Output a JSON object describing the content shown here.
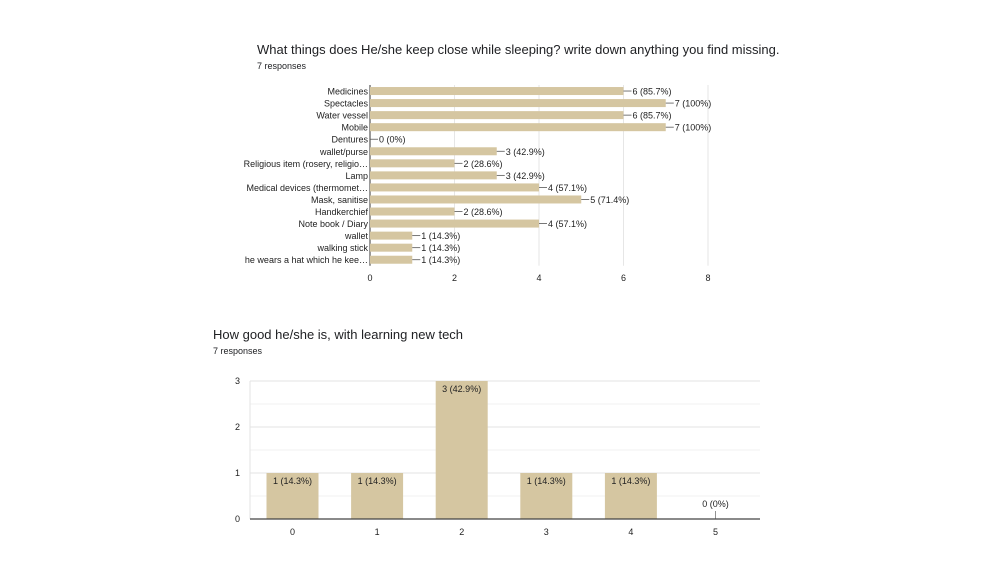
{
  "chart_data": [
    {
      "type": "bar",
      "orientation": "horizontal",
      "title": "What things does He/she keep close while sleeping? write down anything you find missing.",
      "subtitle": "7 responses",
      "categories": [
        "Medicines",
        "Spectacles",
        "Water vessel",
        "Mobile",
        "Dentures",
        "wallet/purse",
        "Religious item (rosery, religio…",
        "Lamp",
        "Medical devices (thermomet…",
        "Mask, sanitise",
        "Handkerchief",
        "Note book / Diary",
        "wallet",
        "walking stick",
        "he wears a hat which he kee…"
      ],
      "values": [
        6,
        7,
        6,
        7,
        0,
        3,
        2,
        3,
        4,
        5,
        2,
        4,
        1,
        1,
        1
      ],
      "data_labels": [
        "6 (85.7%)",
        "7 (100%)",
        "6 (85.7%)",
        "7 (100%)",
        "0 (0%)",
        "3 (42.9%)",
        "2 (28.6%)",
        "3 (42.9%)",
        "4 (57.1%)",
        "5 (71.4%)",
        "2 (28.6%)",
        "4 (57.1%)",
        "1 (14.3%)",
        "1 (14.3%)",
        "1 (14.3%)"
      ],
      "xlim": [
        0,
        8
      ],
      "xticks": [
        "0",
        "2",
        "4",
        "6",
        "8"
      ],
      "grid": true,
      "color": "#d5c6a1"
    },
    {
      "type": "bar",
      "orientation": "vertical",
      "title": "How good he/she is, with learning new tech",
      "subtitle": "7 responses",
      "categories": [
        "0",
        "1",
        "2",
        "3",
        "4",
        "5"
      ],
      "values": [
        1,
        1,
        3,
        1,
        1,
        0
      ],
      "data_labels": [
        "1 (14.3%)",
        "1 (14.3%)",
        "3 (42.9%)",
        "1 (14.3%)",
        "1 (14.3%)",
        "0 (0%)"
      ],
      "ylim": [
        0,
        3
      ],
      "yticks": [
        "0",
        "1",
        "2",
        "3"
      ],
      "grid": true,
      "color": "#d5c6a1"
    }
  ]
}
